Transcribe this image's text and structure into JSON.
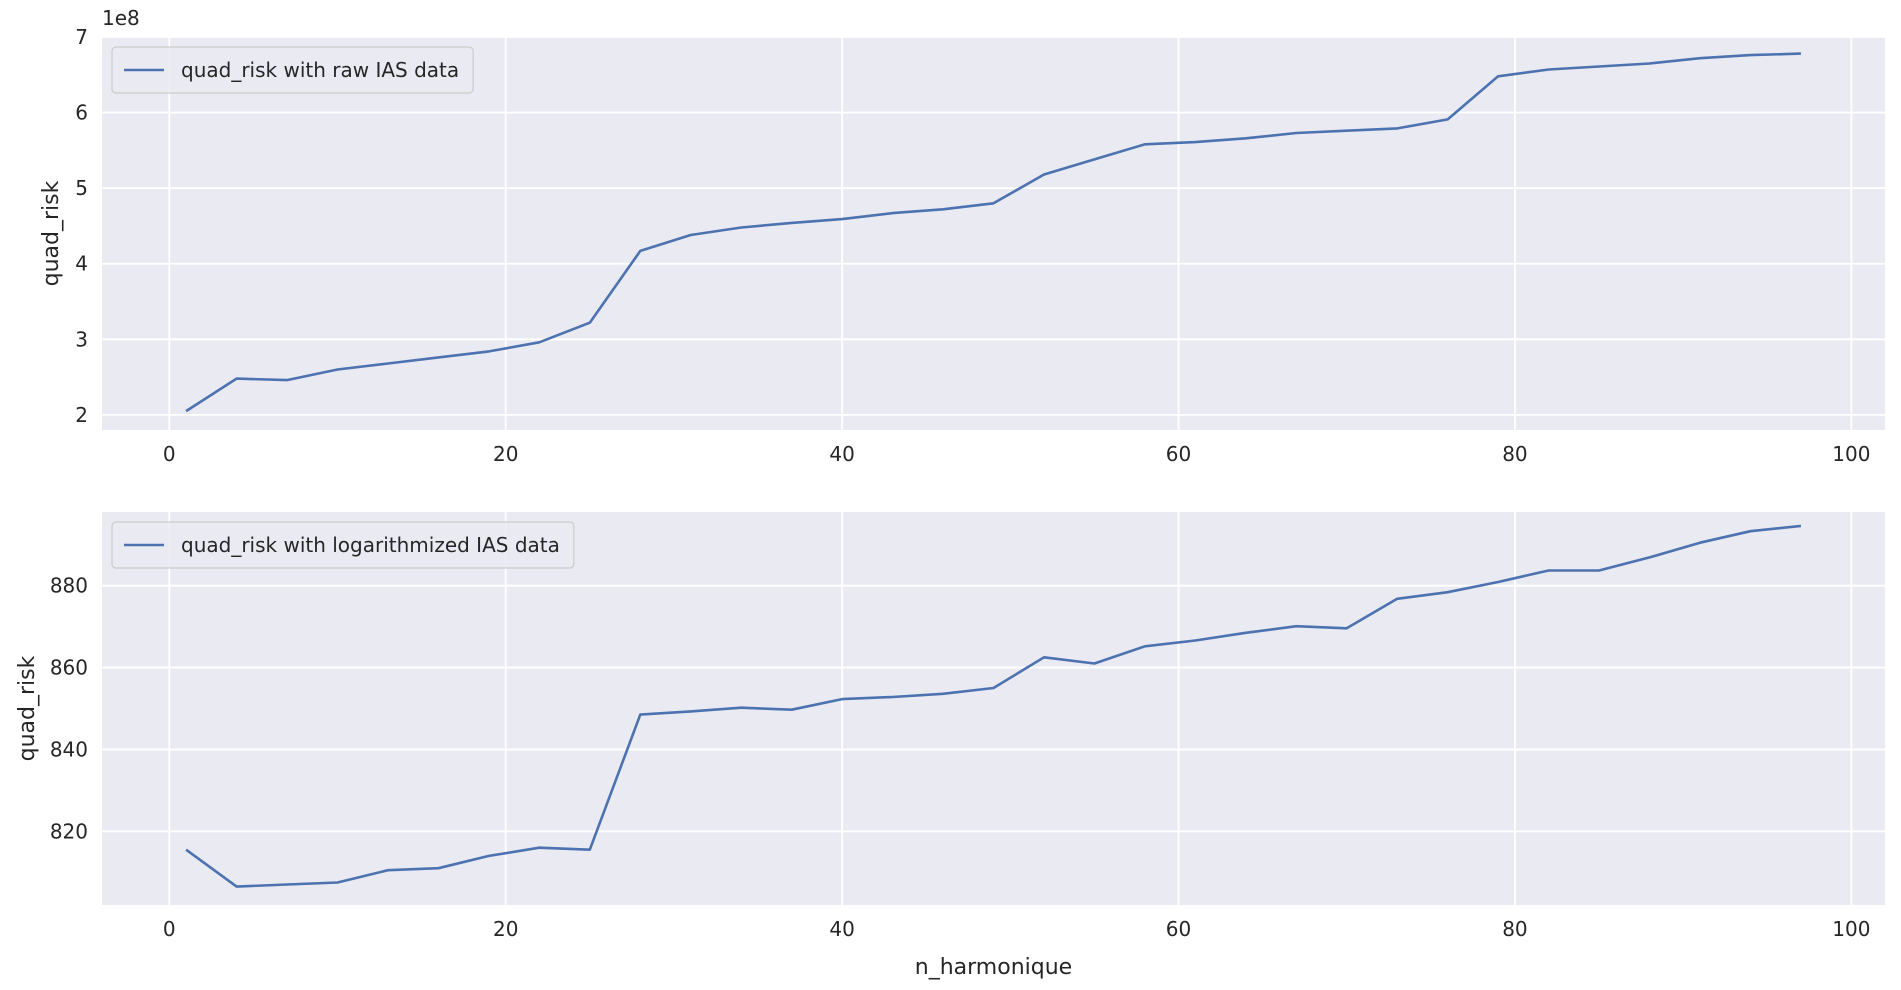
{
  "chart_data": [
    {
      "type": "line",
      "xlabel": "",
      "ylabel": "quad_risk",
      "offset_label": "1e8",
      "xlim": [
        -4,
        102
      ],
      "ylim": [
        180000000,
        700000000
      ],
      "xticks": [
        0,
        20,
        40,
        60,
        80,
        100
      ],
      "yticks": [
        200000000,
        300000000,
        400000000,
        500000000,
        600000000,
        700000000
      ],
      "ytick_labels": [
        "2",
        "3",
        "4",
        "5",
        "6",
        "7"
      ],
      "grid": true,
      "legend_position": "top-left",
      "series": [
        {
          "name": "quad_risk with raw IAS data",
          "color": "#4c72b0",
          "x": [
            1,
            4,
            7,
            10,
            13,
            16,
            19,
            22,
            25,
            28,
            31,
            34,
            37,
            40,
            43,
            46,
            49,
            52,
            55,
            58,
            61,
            64,
            67,
            70,
            73,
            76,
            79,
            82,
            85,
            88,
            91,
            94,
            97
          ],
          "y": [
            205000000,
            248000000,
            246000000,
            260000000,
            268000000,
            276000000,
            284000000,
            296000000,
            322000000,
            417000000,
            438000000,
            448000000,
            454000000,
            459000000,
            467000000,
            472000000,
            480000000,
            518000000,
            538000000,
            558000000,
            561000000,
            566000000,
            573000000,
            576000000,
            579000000,
            591000000,
            648000000,
            657000000,
            661000000,
            665000000,
            672000000,
            676000000,
            678000000
          ]
        }
      ]
    },
    {
      "type": "line",
      "xlabel": "n_harmonique",
      "ylabel": "quad_risk",
      "xlim": [
        -4,
        102
      ],
      "ylim": [
        802,
        898
      ],
      "xticks": [
        0,
        20,
        40,
        60,
        80,
        100
      ],
      "yticks": [
        820,
        840,
        860,
        880
      ],
      "grid": true,
      "legend_position": "top-left",
      "series": [
        {
          "name": "quad_risk with logarithmized IAS data",
          "color": "#4c72b0",
          "x": [
            1,
            4,
            7,
            10,
            13,
            16,
            19,
            22,
            25,
            28,
            31,
            34,
            37,
            40,
            43,
            46,
            49,
            52,
            55,
            58,
            61,
            64,
            67,
            70,
            73,
            76,
            79,
            82,
            85,
            88,
            91,
            94,
            97
          ],
          "y": [
            815.5,
            806.5,
            807,
            807.5,
            810.5,
            811,
            814,
            816,
            815.5,
            848.5,
            849.3,
            850.2,
            849.7,
            852.3,
            852.8,
            853.6,
            855,
            862.5,
            861,
            865.2,
            866.6,
            868.5,
            870.1,
            869.6,
            876.8,
            878.4,
            880.9,
            883.7,
            883.7,
            886.9,
            890.5,
            893.3,
            894.6
          ]
        }
      ]
    }
  ]
}
